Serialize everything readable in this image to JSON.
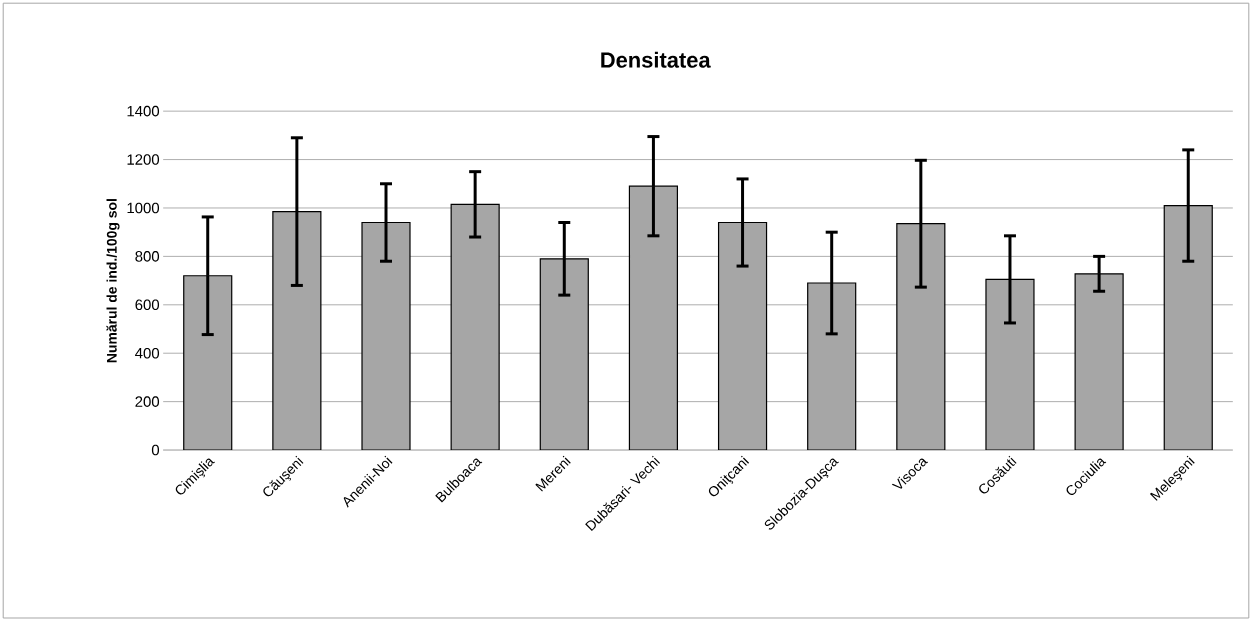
{
  "chart_data": {
    "type": "bar",
    "title": "Densitatea",
    "ylabel": "Numărul de ind./100g sol",
    "categories": [
      "Cimişlia",
      "Căuşeni",
      "Anenii-Noi",
      "Bulboaca",
      "Mereni",
      "Dubăsari- Vechi",
      "Oniţcani",
      "Slobozia-Duşca",
      "Visoca",
      "Cosăuti",
      "Cociulia",
      "Meleşeni"
    ],
    "values": [
      720,
      985,
      940,
      1015,
      790,
      1090,
      940,
      690,
      935,
      705,
      728,
      1010
    ],
    "errors": [
      243,
      305,
      160,
      135,
      150,
      205,
      180,
      210,
      262,
      180,
      72,
      230
    ],
    "color": "#a6a6a6",
    "ylim": [
      0,
      1400
    ],
    "yticks": [
      0,
      200,
      400,
      600,
      800,
      1000,
      1200,
      1400
    ],
    "grid": "y"
  }
}
